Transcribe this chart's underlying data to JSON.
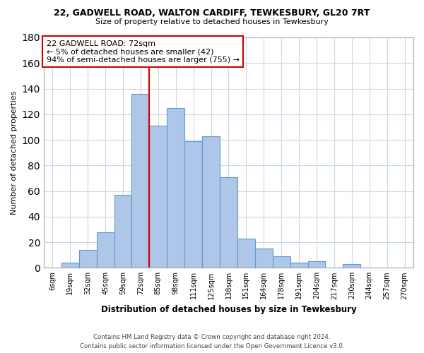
{
  "title_line1": "22, GADWELL ROAD, WALTON CARDIFF, TEWKESBURY, GL20 7RT",
  "title_line2": "Size of property relative to detached houses in Tewkesbury",
  "xlabel": "Distribution of detached houses by size in Tewkesbury",
  "ylabel": "Number of detached properties",
  "bar_labels": [
    "6sqm",
    "19sqm",
    "32sqm",
    "45sqm",
    "59sqm",
    "72sqm",
    "85sqm",
    "98sqm",
    "111sqm",
    "125sqm",
    "138sqm",
    "151sqm",
    "164sqm",
    "178sqm",
    "191sqm",
    "204sqm",
    "217sqm",
    "230sqm",
    "244sqm",
    "257sqm",
    "270sqm"
  ],
  "bar_values": [
    0,
    4,
    14,
    28,
    57,
    136,
    111,
    125,
    99,
    103,
    71,
    23,
    15,
    9,
    4,
    5,
    0,
    3,
    0,
    0,
    0
  ],
  "bar_color": "#aec6e8",
  "bar_edge_color": "#5b9bd5",
  "vline_x": 6,
  "vline_color": "#cc0000",
  "annotation_title": "22 GADWELL ROAD: 72sqm",
  "annotation_line2": "← 5% of detached houses are smaller (42)",
  "annotation_line3": "94% of semi-detached houses are larger (755) →",
  "annotation_box_edge_color": "#cc0000",
  "ylim": [
    0,
    180
  ],
  "yticks": [
    0,
    20,
    40,
    60,
    80,
    100,
    120,
    140,
    160,
    180
  ],
  "footnote_line1": "Contains HM Land Registry data © Crown copyright and database right 2024.",
  "footnote_line2": "Contains public sector information licensed under the Open Government Licence v3.0.",
  "bg_color": "#ffffff",
  "grid_color": "#c8d8e8"
}
